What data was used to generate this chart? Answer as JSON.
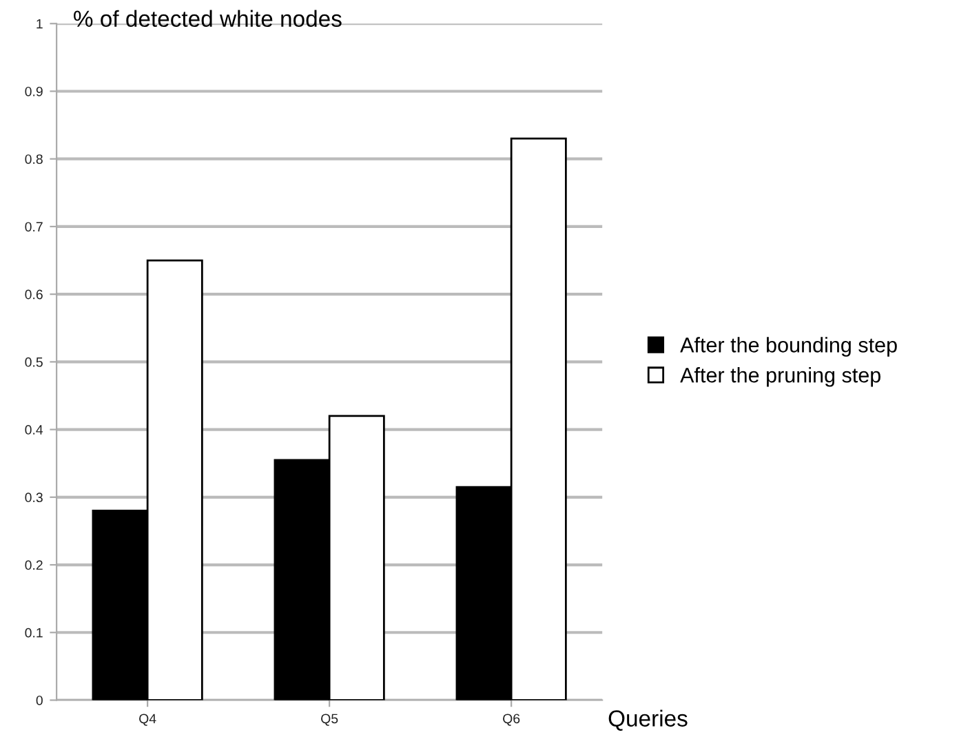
{
  "chart_data": {
    "type": "bar",
    "ylabel": "% of detected white nodes",
    "xlabel": "Queries",
    "categories": [
      "Q4",
      "Q5",
      "Q6"
    ],
    "series": [
      {
        "name": "After the bounding step",
        "color": "#000000",
        "values": [
          0.28,
          0.355,
          0.315
        ]
      },
      {
        "name": "After the pruning step",
        "color": "#ffffff",
        "values": [
          0.65,
          0.42,
          0.83
        ]
      }
    ],
    "ylim": [
      0,
      1
    ],
    "yticks": [
      0,
      0.1,
      0.2,
      0.3,
      0.4,
      0.5,
      0.6,
      0.7,
      0.8,
      0.9,
      1
    ],
    "grid": "y",
    "legend": "right"
  }
}
